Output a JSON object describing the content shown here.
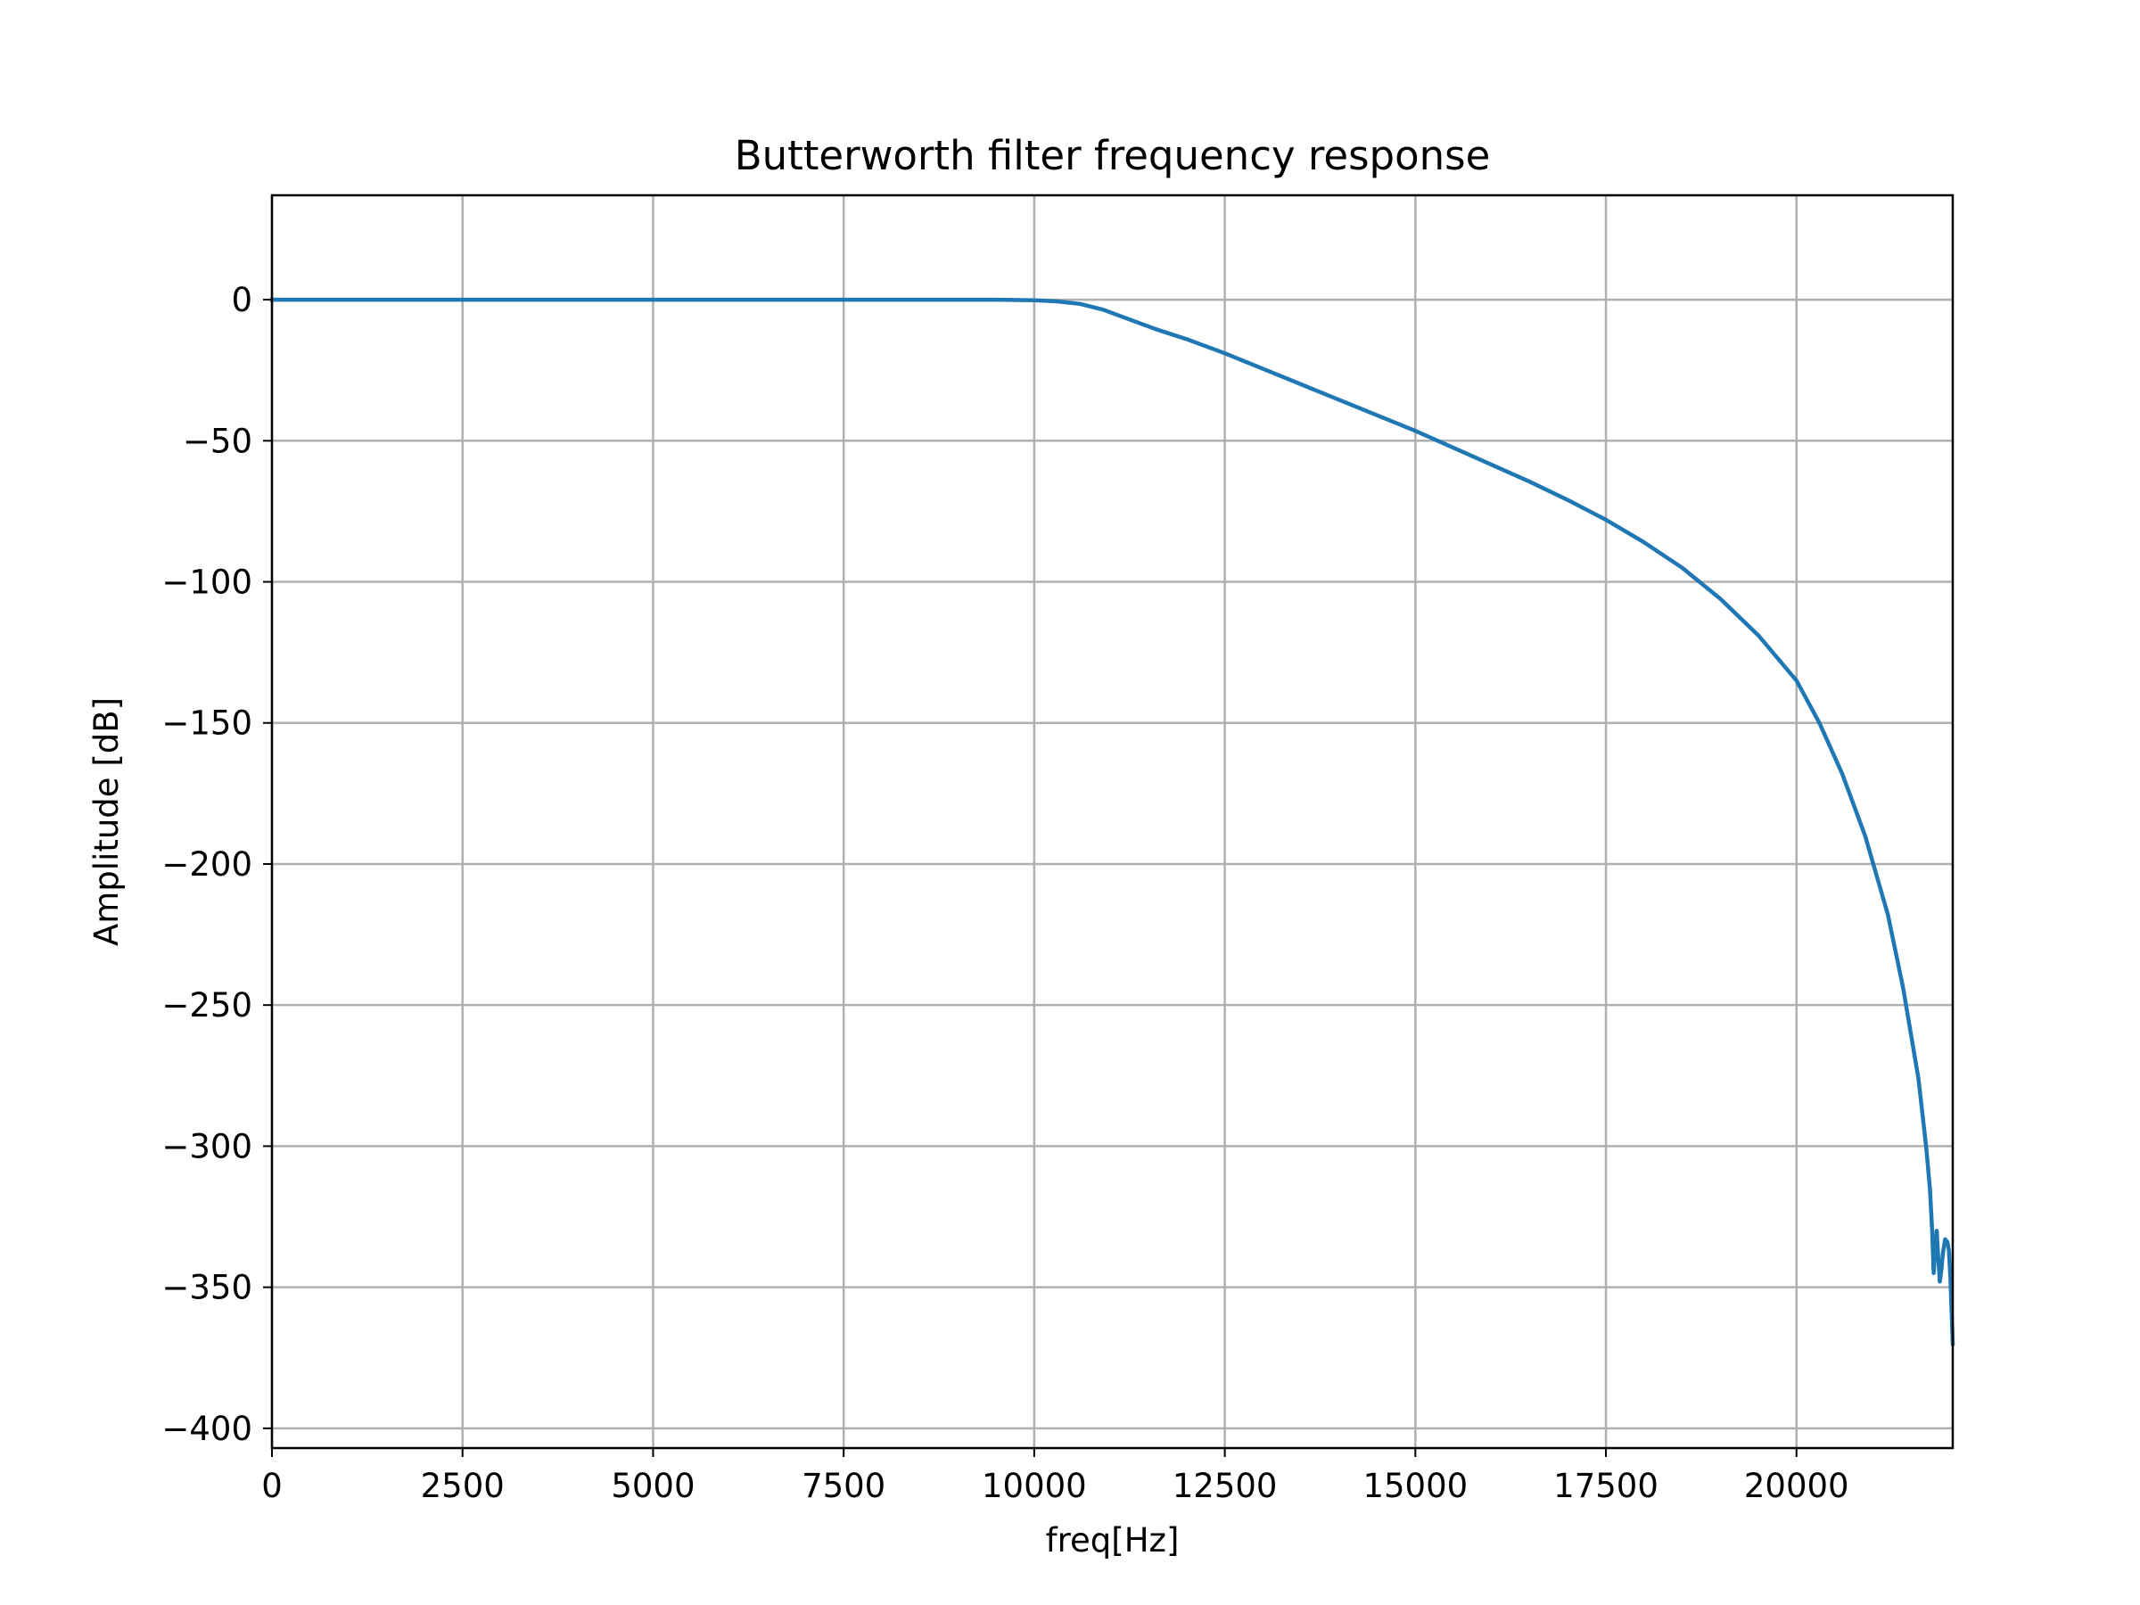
{
  "chart_data": {
    "type": "line",
    "title": "Butterworth filter frequency response",
    "xlabel": "freq[Hz]",
    "ylabel": "Amplitude [dB]",
    "xlim": [
      0,
      22050
    ],
    "ylim": [
      -407,
      37
    ],
    "xticks": [
      0,
      2500,
      5000,
      7500,
      10000,
      12500,
      15000,
      17500,
      20000
    ],
    "xtick_labels": [
      "0",
      "2500",
      "5000",
      "7500",
      "10000",
      "12500",
      "15000",
      "17500",
      "20000"
    ],
    "yticks": [
      0,
      -50,
      -100,
      -150,
      -200,
      -250,
      -300,
      -350,
      -400
    ],
    "ytick_labels": [
      "0",
      "−50",
      "−100",
      "−150",
      "−200",
      "−250",
      "−300",
      "−350",
      "−400"
    ],
    "grid": true,
    "legend": "none",
    "series": [
      {
        "color": "#1f77b4",
        "x": [
          0,
          2000,
          4000,
          6000,
          8000,
          9000,
          9500,
          10000,
          10300,
          10600,
          10900,
          11200,
          11600,
          12000,
          12500,
          13000,
          13500,
          14000,
          14500,
          15000,
          15500,
          16000,
          16500,
          17000,
          17500,
          18000,
          18500,
          19000,
          19500,
          20000,
          20300,
          20600,
          20900,
          21200,
          21400,
          21600,
          21700,
          21750,
          21780,
          21800,
          21820,
          21840,
          21860,
          21880,
          21900,
          21920,
          21950,
          21980,
          22000,
          22020,
          22050
        ],
        "y": [
          0,
          0,
          0,
          0,
          0,
          0,
          0,
          -0.2,
          -0.6,
          -1.5,
          -3.5,
          -6.5,
          -10.5,
          -14,
          -19,
          -24.5,
          -30,
          -35.5,
          -41,
          -46.5,
          -52.5,
          -58.5,
          -64.5,
          -71,
          -78,
          -86,
          -95,
          -106,
          -119,
          -135,
          -150,
          -168,
          -190,
          -218,
          -244,
          -276,
          -300,
          -315,
          -330,
          -345,
          -336,
          -330,
          -340,
          -348,
          -344,
          -338,
          -333,
          -334,
          -337,
          -347,
          -370
        ]
      }
    ]
  }
}
